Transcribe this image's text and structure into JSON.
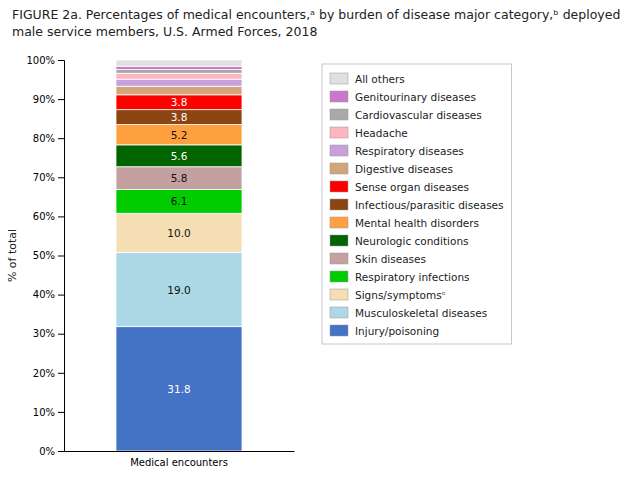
{
  "chart_data": {
    "type": "bar",
    "title": "FIGURE 2a. Percentages of medical encounters,ᵃ by burden of disease major category,ᵇ deployed male service members, U.S. Armed Forces, 2018",
    "ylabel": "% of total",
    "categories": [
      "Medical encounters"
    ],
    "stacked": true,
    "grid": false,
    "legend": "right",
    "ylim": [
      0,
      100
    ],
    "yticks": [
      {
        "value": 0,
        "label": "0%"
      },
      {
        "value": 10,
        "label": "10%"
      },
      {
        "value": 20,
        "label": "20%"
      },
      {
        "value": 30,
        "label": "30%"
      },
      {
        "value": 40,
        "label": "40%"
      },
      {
        "value": 50,
        "label": "50%"
      },
      {
        "value": 60,
        "label": "60%"
      },
      {
        "value": 70,
        "label": "70%"
      },
      {
        "value": 80,
        "label": "80%"
      },
      {
        "value": 90,
        "label": "90%"
      },
      {
        "value": 100,
        "label": "100%"
      }
    ],
    "series": [
      {
        "name": "Injury/poisoning",
        "color": "#4472C4",
        "values": [
          31.8
        ],
        "data_labels": true
      },
      {
        "name": "Musculoskeletal diseases",
        "color": "#ADD8E6",
        "values": [
          19.0
        ],
        "value_labels": [
          "19.0"
        ],
        "data_labels": true
      },
      {
        "name": "Signs/symptomsᶜ",
        "color": "#F5DEB3",
        "values": [
          10.0
        ],
        "value_labels": [
          "10.0"
        ],
        "data_labels": true
      },
      {
        "name": "Respiratory infections",
        "color": "#00CC00",
        "values": [
          6.1
        ],
        "data_labels": true
      },
      {
        "name": "Skin diseases",
        "color": "#C4A0A0",
        "values": [
          5.8
        ],
        "data_labels": true
      },
      {
        "name": "Neurologic conditions",
        "color": "#006400",
        "values": [
          5.6
        ],
        "data_labels": true
      },
      {
        "name": "Mental health disorders",
        "color": "#FFA040",
        "values": [
          5.2
        ],
        "data_labels": true
      },
      {
        "name": "Infectious/parasitic diseases",
        "color": "#8B4513",
        "values": [
          3.8
        ],
        "data_labels": true
      },
      {
        "name": "Sense organ diseases",
        "color": "#FF0000",
        "values": [
          3.8
        ],
        "data_labels": true
      },
      {
        "name": "Digestive diseases",
        "color": "#D2A679",
        "values": [
          2.2
        ],
        "data_labels": false
      },
      {
        "name": "Respiratory diseases",
        "color": "#C8A0DC",
        "values": [
          1.8
        ],
        "data_labels": false
      },
      {
        "name": "Headache",
        "color": "#FFB6C1",
        "values": [
          1.5
        ],
        "data_labels": false
      },
      {
        "name": "Cardiovascular diseases",
        "color": "#A9A9A9",
        "values": [
          1.0
        ],
        "data_labels": false
      },
      {
        "name": "Genitourinary diseases",
        "color": "#CC77CC",
        "values": [
          0.8
        ],
        "data_labels": false
      },
      {
        "name": "All others",
        "color": "#E0E0E0",
        "values": [
          1.6
        ],
        "data_labels": false
      }
    ]
  }
}
